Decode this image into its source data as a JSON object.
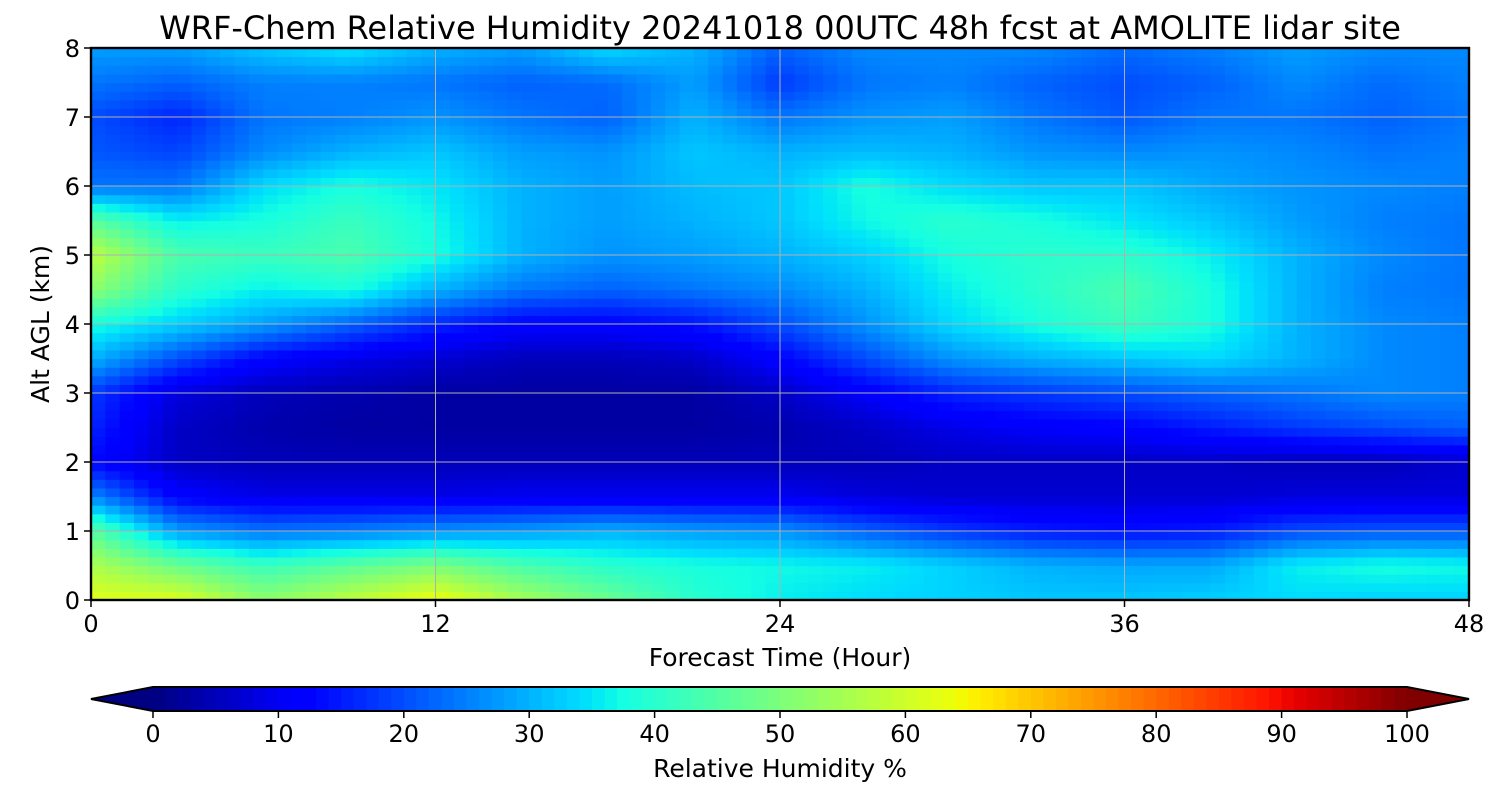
{
  "chart_data": {
    "type": "heatmap",
    "title": "WRF-Chem Relative Humidity 20241018 00UTC 48h fcst at AMOLITE lidar site",
    "xlabel": "Forecast Time (Hour)",
    "ylabel": "Alt AGL (km)",
    "xlim": [
      0,
      48
    ],
    "ylim": [
      0,
      8
    ],
    "x_ticks": [
      "0",
      "12",
      "24",
      "36",
      "48"
    ],
    "y_ticks": [
      "0",
      "1",
      "2",
      "3",
      "4",
      "5",
      "6",
      "7",
      "8"
    ],
    "grid": true,
    "x": [
      0,
      3,
      6,
      9,
      12,
      15,
      18,
      21,
      24,
      27,
      30,
      33,
      36,
      39,
      42,
      45,
      48
    ],
    "y": [
      0,
      0.5,
      1,
      1.5,
      2,
      2.5,
      3,
      3.5,
      4,
      4.5,
      5,
      5.5,
      6,
      6.5,
      7,
      7.5,
      8
    ],
    "z": [
      [
        62,
        62,
        52,
        58,
        64,
        55,
        48,
        40,
        36,
        34,
        33,
        32,
        32,
        33,
        34,
        33,
        33
      ],
      [
        56,
        48,
        42,
        46,
        50,
        44,
        40,
        38,
        37,
        36,
        33,
        30,
        29,
        29,
        36,
        38,
        37
      ],
      [
        46,
        28,
        24,
        25,
        27,
        28,
        30,
        28,
        27,
        22,
        18,
        15,
        14,
        15,
        20,
        21,
        21
      ],
      [
        26,
        12,
        9,
        9,
        9,
        10,
        10,
        10,
        10,
        8,
        7,
        7,
        7,
        7,
        8,
        8,
        8
      ],
      [
        13,
        6,
        5,
        5,
        5,
        5,
        5,
        5,
        5,
        5,
        6,
        6,
        6,
        6,
        5,
        5,
        7
      ],
      [
        16,
        6,
        4,
        3,
        3,
        3,
        3,
        3,
        4,
        6,
        9,
        11,
        12,
        15,
        18,
        20,
        22
      ],
      [
        18,
        8,
        5,
        4,
        3,
        3,
        3,
        3,
        6,
        11,
        16,
        18,
        20,
        22,
        24,
        26,
        25
      ],
      [
        30,
        20,
        12,
        9,
        7,
        5,
        5,
        6,
        12,
        20,
        27,
        30,
        32,
        34,
        30,
        26,
        25
      ],
      [
        38,
        33,
        28,
        22,
        16,
        12,
        12,
        14,
        20,
        27,
        34,
        38,
        42,
        38,
        30,
        26,
        25
      ],
      [
        52,
        40,
        36,
        38,
        30,
        24,
        22,
        24,
        26,
        30,
        36,
        40,
        44,
        38,
        30,
        25,
        24
      ],
      [
        58,
        44,
        42,
        44,
        38,
        30,
        27,
        28,
        30,
        33,
        38,
        40,
        40,
        36,
        30,
        26,
        24
      ],
      [
        46,
        36,
        38,
        42,
        37,
        30,
        28,
        30,
        32,
        37,
        40,
        38,
        35,
        32,
        28,
        25,
        24
      ],
      [
        24,
        24,
        34,
        38,
        35,
        30,
        28,
        31,
        32,
        38,
        34,
        32,
        32,
        29,
        27,
        26,
        25
      ],
      [
        21,
        19,
        26,
        30,
        32,
        28,
        27,
        32,
        30,
        31,
        30,
        27,
        26,
        27,
        26,
        24,
        25
      ],
      [
        20,
        16,
        24,
        25,
        27,
        24,
        22,
        30,
        24,
        27,
        28,
        24,
        21,
        24,
        24,
        22,
        24
      ],
      [
        24,
        22,
        25,
        25,
        24,
        22,
        23,
        28,
        18,
        24,
        25,
        22,
        20,
        22,
        26,
        23,
        25
      ],
      [
        28,
        28,
        32,
        35,
        30,
        28,
        34,
        30,
        22,
        26,
        26,
        26,
        23,
        25,
        28,
        26,
        26
      ]
    ],
    "colorbar": {
      "label": "Relative Humidity %",
      "colormap": "jet",
      "min": 0,
      "max": 100,
      "extend": "both",
      "ticks": [
        "0",
        "10",
        "20",
        "30",
        "40",
        "50",
        "60",
        "70",
        "80",
        "90",
        "100"
      ]
    }
  }
}
